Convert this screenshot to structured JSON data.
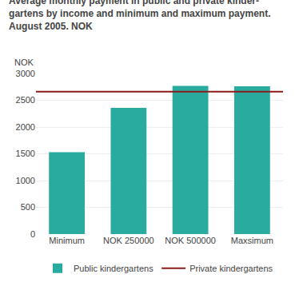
{
  "chart_data": {
    "type": "bar",
    "title": "Average monthly payment in public and private kinder-\ngartens by income and minimum and maximum payment.\nAugust 2005. NOK",
    "ylabel": "NOK",
    "categories": [
      "Minimum",
      "NOK 250000",
      "NOK 500000",
      "Maxsimum"
    ],
    "series": [
      {
        "name": "Public kindergartens",
        "type": "bar",
        "color": "#2aaba0",
        "values": [
          1530,
          2360,
          2770,
          2760
        ]
      },
      {
        "name": "Private kindergartens",
        "type": "hline",
        "color": "#8b1a1a",
        "value": 2660
      }
    ],
    "ylim": [
      0,
      3000
    ],
    "yticks": [
      0,
      500,
      1000,
      1500,
      2000,
      2500,
      3000
    ],
    "grid": true,
    "legend": "bottom"
  }
}
